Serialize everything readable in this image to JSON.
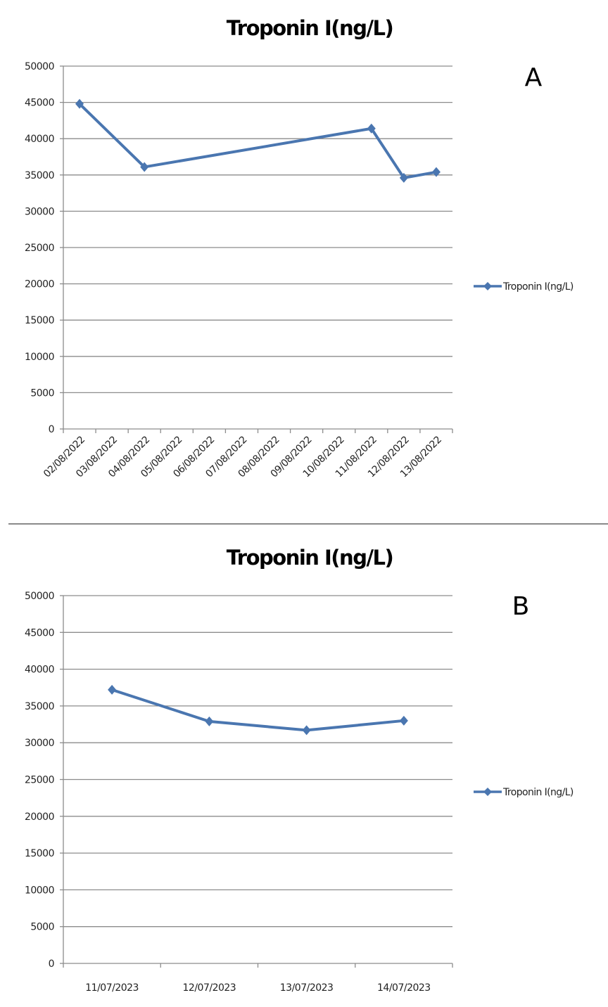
{
  "chart_data": [
    {
      "type": "line",
      "panel_label": "A",
      "title": "Troponin I(ng/L)",
      "xlabel": "",
      "ylabel": "",
      "ylim": [
        0,
        50000
      ],
      "yticks": [
        0,
        5000,
        10000,
        15000,
        20000,
        25000,
        30000,
        35000,
        40000,
        45000,
        50000
      ],
      "grid": true,
      "legend_position": "right",
      "x_label_rotation": -45,
      "categories": [
        "02/08/2022",
        "03/08/2022",
        "04/08/2022",
        "05/08/2022",
        "06/08/2022",
        "07/08/2022",
        "08/08/2022",
        "09/08/2022",
        "10/08/2022",
        "11/08/2022",
        "12/08/2022",
        "13/08/2022"
      ],
      "series": [
        {
          "name": "Troponin I(ng/L)",
          "color": "#4a76b0",
          "marker": "diamond",
          "points": [
            {
              "x": "02/08/2022",
              "y": 44800
            },
            {
              "x": "04/08/2022",
              "y": 36100
            },
            {
              "x": "11/08/2022",
              "y": 41400
            },
            {
              "x": "12/08/2022",
              "y": 34600
            },
            {
              "x": "13/08/2022",
              "y": 35400
            }
          ]
        }
      ]
    },
    {
      "type": "line",
      "panel_label": "B",
      "title": "Troponin I(ng/L)",
      "xlabel": "",
      "ylabel": "",
      "ylim": [
        0,
        50000
      ],
      "yticks": [
        0,
        5000,
        10000,
        15000,
        20000,
        25000,
        30000,
        35000,
        40000,
        45000,
        50000
      ],
      "grid": true,
      "legend_position": "right",
      "x_label_rotation": 0,
      "categories": [
        "11/07/2023",
        "12/07/2023",
        "13/07/2023",
        "14/07/2023"
      ],
      "series": [
        {
          "name": "Troponin I(ng/L)",
          "color": "#4a76b0",
          "marker": "diamond",
          "points": [
            {
              "x": "11/07/2023",
              "y": 37200
            },
            {
              "x": "12/07/2023",
              "y": 32900
            },
            {
              "x": "13/07/2023",
              "y": 31700
            },
            {
              "x": "14/07/2023",
              "y": 33000
            }
          ]
        }
      ]
    }
  ],
  "colors": {
    "series": "#4a76b0",
    "gridline": "#8c8c8c",
    "axis": "#8c8c8c",
    "divider": "#8a8a8a"
  }
}
